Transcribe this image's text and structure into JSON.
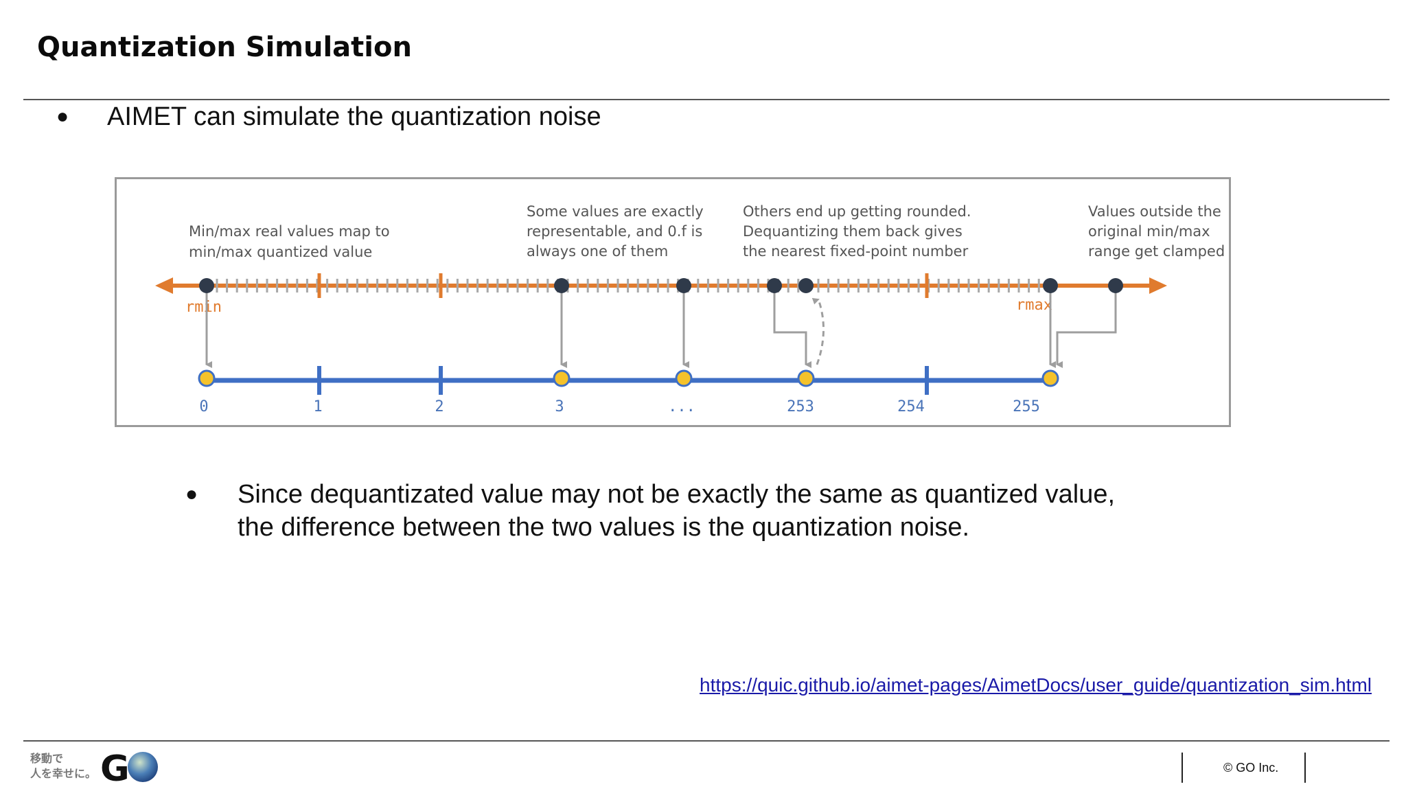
{
  "slide": {
    "title": "Quantization Simulation",
    "bullet1": "AIMET can simulate the quantization noise",
    "bullet2": "Since dequantizated value may not be exactly the same as quantized value,\nthe difference between the two values is the quantization noise.",
    "bullet_glyph": "●",
    "link": "https://quic.github.io/aimet-pages/AimetDocs/user_guide/quantization_sim.html"
  },
  "figure": {
    "annotations": {
      "minmax": [
        "Min/max real values map to",
        "min/max quantized value"
      ],
      "exact": [
        "Some values are exactly",
        "representable, and 0.f is",
        "always one of them"
      ],
      "rounded": [
        "Others end up getting rounded.",
        "Dequantizing them back gives",
        "the nearest fixed-point number"
      ],
      "clamped": [
        "Values outside the",
        "original min/max",
        "range get clamped"
      ]
    },
    "rmin_label": "rmin",
    "rmax_label": "rmax",
    "quantized_labels": [
      "0",
      "1",
      "2",
      "3",
      "...",
      "253",
      "254",
      "255"
    ],
    "colors": {
      "real_axis": "#e07b2e",
      "quant_axis": "#3f6fc4",
      "real_point": "#2f3a4a",
      "quant_point": "#f5c22b",
      "arrow": "#9e9e9e"
    }
  },
  "footer": {
    "logo_text": "移動で\n人を幸せに。",
    "logo_mark": "GO",
    "copyright": "© GO Inc."
  }
}
